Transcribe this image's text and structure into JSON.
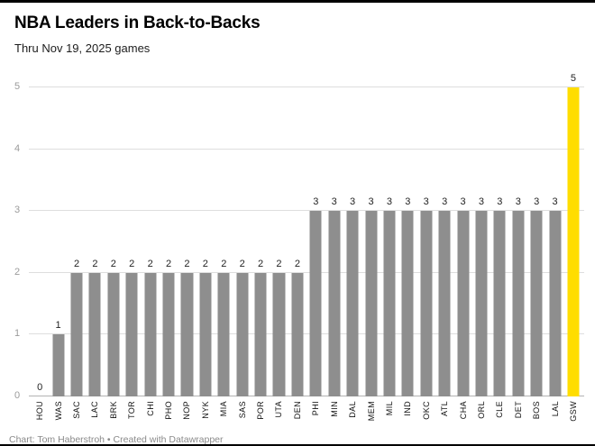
{
  "header": {
    "title": "NBA Leaders in Back-to-Backs",
    "subtitle": "Thru Nov 19, 2025 games"
  },
  "footer": {
    "credit": "Chart: Tom Haberstroh • Created with Datawrapper"
  },
  "chart_data": {
    "type": "bar",
    "title": "NBA Leaders in Back-to-Backs",
    "subtitle": "Thru Nov 19, 2025 games",
    "categories": [
      "HOU",
      "WAS",
      "SAC",
      "LAC",
      "BRK",
      "TOR",
      "CHI",
      "PHO",
      "NOP",
      "NYK",
      "MIA",
      "SAS",
      "POR",
      "UTA",
      "DEN",
      "PHI",
      "MIN",
      "DAL",
      "MEM",
      "MIL",
      "IND",
      "OKC",
      "ATL",
      "CHA",
      "ORL",
      "CLE",
      "DET",
      "BOS",
      "LAL",
      "GSW"
    ],
    "values": [
      0,
      1,
      2,
      2,
      2,
      2,
      2,
      2,
      2,
      2,
      2,
      2,
      2,
      2,
      2,
      3,
      3,
      3,
      3,
      3,
      3,
      3,
      3,
      3,
      3,
      3,
      3,
      3,
      3,
      5
    ],
    "ylim": [
      0,
      5
    ],
    "yticks": [
      0,
      1,
      2,
      3,
      4,
      5
    ],
    "grid": true,
    "legend": "none",
    "data_labels": true,
    "bar_color": "#8e8e8e",
    "highlight_category": "GSW",
    "highlight_color": "#ffdd00",
    "xlabel": "",
    "ylabel": ""
  }
}
